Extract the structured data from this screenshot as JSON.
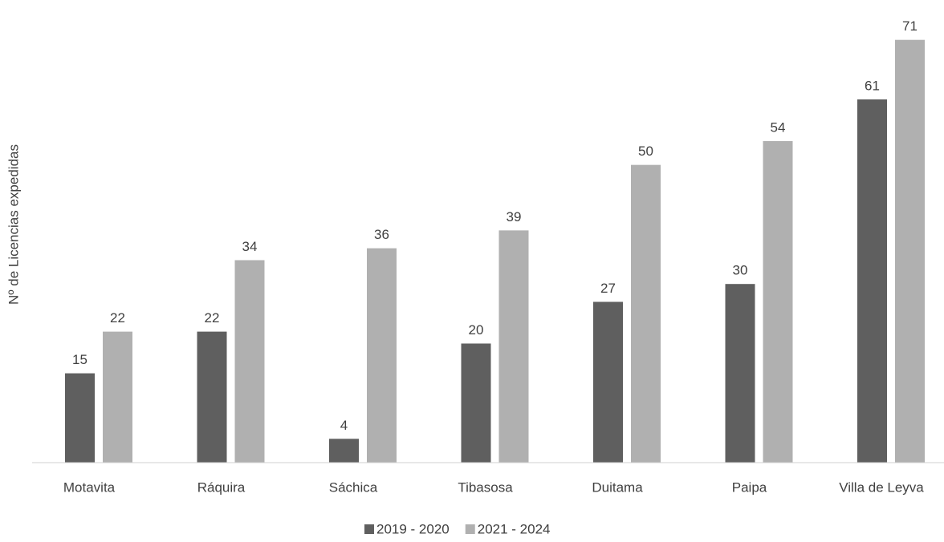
{
  "chart_data": {
    "type": "bar",
    "y_label": "Nº de Licencias expedidas",
    "categories": [
      "Motavita",
      "Ráquira",
      "Sáchica",
      "Tibasosa",
      "Duitama",
      "Paipa",
      "Villa de Leyva"
    ],
    "series": [
      {
        "name": "2019 - 2020",
        "color": "#5f5f5f",
        "values": [
          15,
          22,
          4,
          20,
          27,
          30,
          61
        ]
      },
      {
        "name": "2021 - 2024",
        "color": "#b0b0b0",
        "values": [
          22,
          34,
          36,
          39,
          50,
          54,
          71
        ]
      }
    ],
    "ylim": [
      0,
      75
    ],
    "legend": "bottom"
  }
}
